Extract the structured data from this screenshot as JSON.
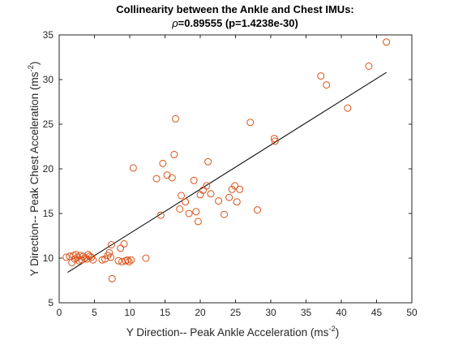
{
  "chart_data": {
    "type": "scatter",
    "title": "Collinearity between the Ankle and Chest IMUs:",
    "subtitle": {
      "rho_symbol": "ρ",
      "rest": "=0.89555 (p=1.4238e-30)"
    },
    "xlabel": {
      "text": "Y Direction-- Peak Ankle Acceleration (ms",
      "sup": "-2",
      "close": ")"
    },
    "ylabel": {
      "text": "Y Direction-- Peak Chest Acceleration (ms",
      "sup": "-2",
      "close": ")"
    },
    "xlim": [
      0,
      50
    ],
    "ylim": [
      5,
      35
    ],
    "xticks": [
      "0",
      "5",
      "10",
      "15",
      "20",
      "25",
      "30",
      "35",
      "40",
      "45",
      "50"
    ],
    "yticks": [
      "5",
      "10",
      "15",
      "20",
      "25",
      "30",
      "35"
    ],
    "grid": false,
    "marker_color": "#d95319",
    "fit_line_color": "#000000",
    "fit_line": [
      [
        1.2,
        8.4
      ],
      [
        46.4,
        30.8
      ]
    ],
    "points": [
      [
        1.0,
        10.1
      ],
      [
        1.5,
        10.2
      ],
      [
        1.8,
        9.5
      ],
      [
        2.0,
        10.3
      ],
      [
        2.2,
        9.9
      ],
      [
        2.4,
        10.4
      ],
      [
        2.6,
        10.1
      ],
      [
        2.8,
        9.7
      ],
      [
        3.0,
        10.3
      ],
      [
        3.2,
        9.8
      ],
      [
        3.4,
        10.2
      ],
      [
        3.6,
        10.0
      ],
      [
        3.9,
        9.9
      ],
      [
        4.1,
        10.4
      ],
      [
        4.3,
        10.2
      ],
      [
        4.6,
        10.1
      ],
      [
        4.8,
        9.8
      ],
      [
        6.1,
        9.8
      ],
      [
        6.5,
        9.9
      ],
      [
        6.9,
        10.3
      ],
      [
        7.1,
        10.6
      ],
      [
        7.3,
        10.1
      ],
      [
        7.4,
        11.5
      ],
      [
        7.5,
        7.7
      ],
      [
        8.4,
        9.7
      ],
      [
        8.7,
        11.1
      ],
      [
        8.9,
        9.6
      ],
      [
        9.2,
        11.6
      ],
      [
        9.4,
        9.7
      ],
      [
        9.7,
        9.8
      ],
      [
        9.9,
        9.6
      ],
      [
        10.2,
        9.8
      ],
      [
        10.5,
        20.1
      ],
      [
        12.3,
        10.0
      ],
      [
        13.8,
        18.9
      ],
      [
        14.4,
        14.8
      ],
      [
        14.7,
        20.6
      ],
      [
        15.3,
        19.3
      ],
      [
        16.0,
        19.0
      ],
      [
        16.3,
        21.6
      ],
      [
        16.5,
        25.6
      ],
      [
        17.1,
        15.5
      ],
      [
        17.3,
        17.0
      ],
      [
        17.9,
        16.3
      ],
      [
        18.4,
        15.0
      ],
      [
        19.1,
        18.7
      ],
      [
        19.4,
        15.2
      ],
      [
        19.7,
        14.1
      ],
      [
        20.0,
        17.1
      ],
      [
        20.4,
        17.6
      ],
      [
        20.9,
        18.1
      ],
      [
        21.1,
        20.8
      ],
      [
        21.5,
        17.2
      ],
      [
        22.6,
        16.4
      ],
      [
        23.4,
        14.9
      ],
      [
        24.1,
        16.8
      ],
      [
        24.5,
        17.7
      ],
      [
        24.9,
        18.1
      ],
      [
        25.2,
        16.3
      ],
      [
        25.6,
        17.7
      ],
      [
        27.1,
        25.2
      ],
      [
        28.1,
        15.4
      ],
      [
        30.5,
        23.4
      ],
      [
        30.6,
        23.1
      ],
      [
        37.1,
        30.4
      ],
      [
        37.9,
        29.4
      ],
      [
        40.9,
        26.8
      ],
      [
        43.9,
        31.5
      ],
      [
        46.4,
        34.2
      ]
    ]
  }
}
